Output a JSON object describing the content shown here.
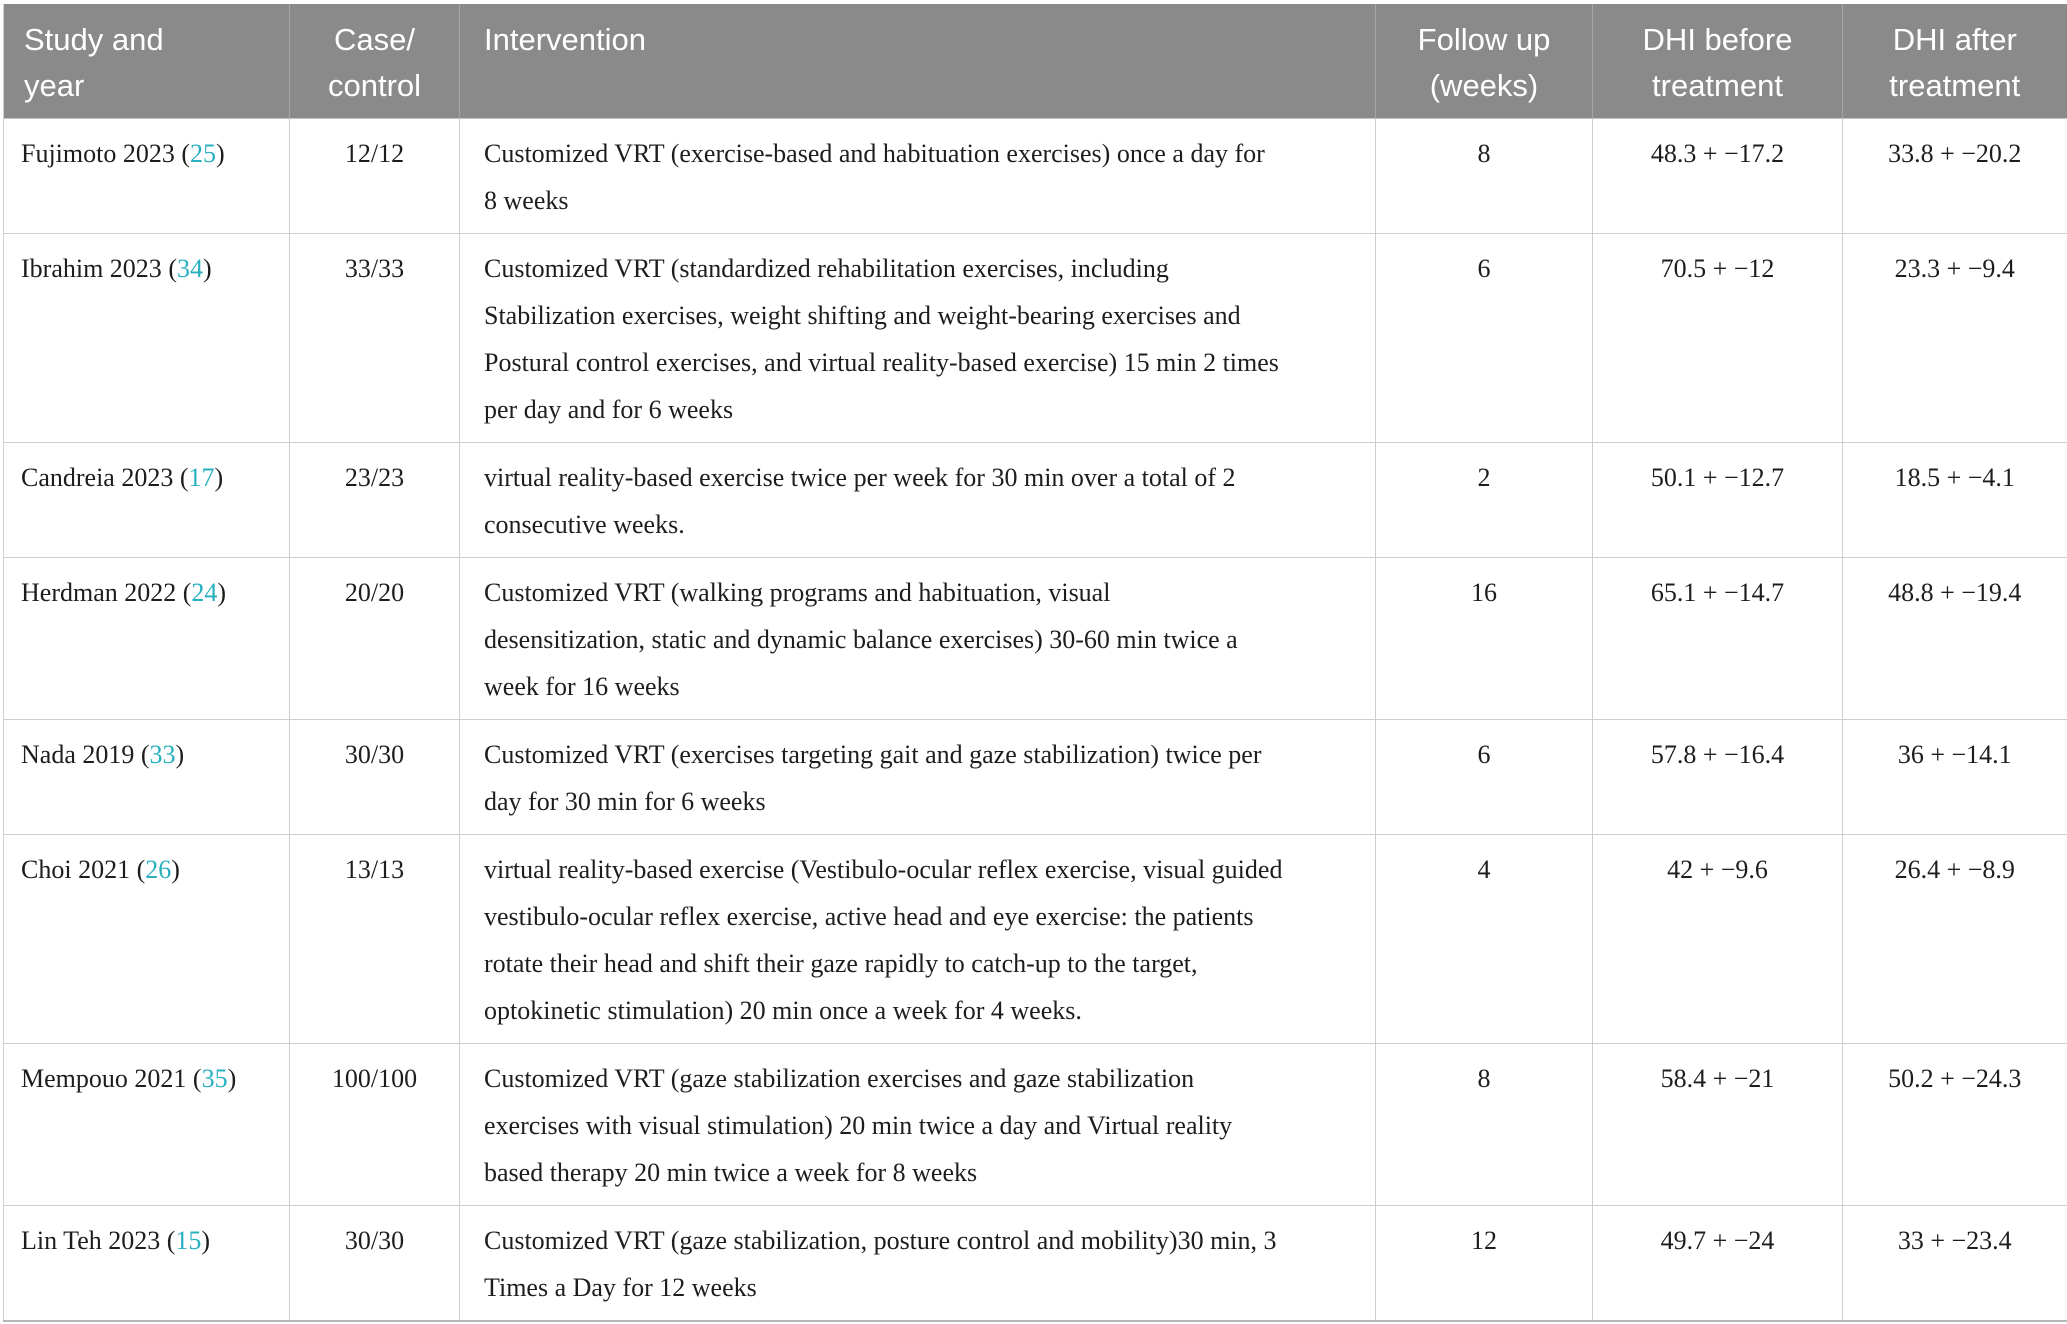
{
  "colors": {
    "header_background": "#8a8a8a",
    "header_text": "#ffffff",
    "body_text": "#1d1d1d",
    "grid_line": "#cfcfcf",
    "citation_link": "#28b0c0"
  },
  "formats": {
    "ref_open": " (",
    "ref_close": ")"
  },
  "table": {
    "columns": [
      {
        "label": "Study and\nyear"
      },
      {
        "label": "Case/\ncontrol"
      },
      {
        "label": "Intervention"
      },
      {
        "label": "Follow up\n(weeks)"
      },
      {
        "label": "DHI before\ntreatment"
      },
      {
        "label": "DHI after\ntreatment"
      }
    ],
    "rows": [
      {
        "study": "Fujimoto 2023",
        "ref": "25",
        "case_control": "12/12",
        "intervention": "Customized VRT (exercise-based and habituation exercises) once a day for\n8 weeks",
        "follow_up": "8",
        "dhi_before": "48.3 + −17.2",
        "dhi_after": "33.8 + −20.2"
      },
      {
        "study": "Ibrahim 2023",
        "ref": "34",
        "case_control": "33/33",
        "intervention": "Customized VRT (standardized rehabilitation exercises, including\nStabilization exercises, weight shifting and weight-bearing exercises and\nPostural control exercises, and virtual reality-based exercise) 15 min 2 times\nper day and for 6 weeks",
        "follow_up": "6",
        "dhi_before": "70.5 + −12",
        "dhi_after": "23.3 + −9.4"
      },
      {
        "study": "Candreia 2023",
        "ref": "17",
        "case_control": "23/23",
        "intervention": "virtual reality-based exercise twice per week for 30 min over a total of 2\nconsecutive weeks.",
        "follow_up": "2",
        "dhi_before": "50.1 + −12.7",
        "dhi_after": "18.5 + −4.1"
      },
      {
        "study": "Herdman 2022",
        "ref": "24",
        "case_control": "20/20",
        "intervention": "Customized VRT (walking programs and habituation, visual\ndesensitization, static and dynamic balance exercises) 30-60 min twice a\nweek for 16 weeks",
        "follow_up": "16",
        "dhi_before": "65.1 + −14.7",
        "dhi_after": "48.8 + −19.4"
      },
      {
        "study": "Nada 2019",
        "ref": "33",
        "case_control": "30/30",
        "intervention": "Customized VRT (exercises targeting gait and gaze stabilization) twice per\nday for 30 min for 6 weeks",
        "follow_up": "6",
        "dhi_before": "57.8 + −16.4",
        "dhi_after": "36 + −14.1"
      },
      {
        "study": "Choi 2021",
        "ref": "26",
        "case_control": "13/13",
        "intervention": "virtual reality-based exercise (Vestibulo-ocular reflex exercise, visual guided\nvestibulo-ocular reflex exercise, active head and eye exercise: the patients\nrotate their head and shift their gaze rapidly to catch-up to the target,\noptokinetic stimulation) 20 min once a week for 4 weeks.",
        "follow_up": "4",
        "dhi_before": "42 + −9.6",
        "dhi_after": "26.4 + −8.9"
      },
      {
        "study": "Mempouo 2021",
        "ref": "35",
        "case_control": "100/100",
        "intervention": "Customized VRT (gaze stabilization exercises and gaze stabilization\nexercises with visual stimulation) 20 min twice a day and Virtual reality\nbased therapy 20 min twice a week for 8 weeks",
        "follow_up": "8",
        "dhi_before": "58.4 + −21",
        "dhi_after": "50.2 + −24.3"
      },
      {
        "study": "Lin Teh 2023",
        "ref": "15",
        "case_control": "30/30",
        "intervention": "Customized VRT (gaze stabilization, posture control and mobility)30 min, 3\nTimes a Day for 12 weeks",
        "follow_up": "12",
        "dhi_before": "49.7 + −24",
        "dhi_after": "33 + −23.4"
      }
    ]
  }
}
